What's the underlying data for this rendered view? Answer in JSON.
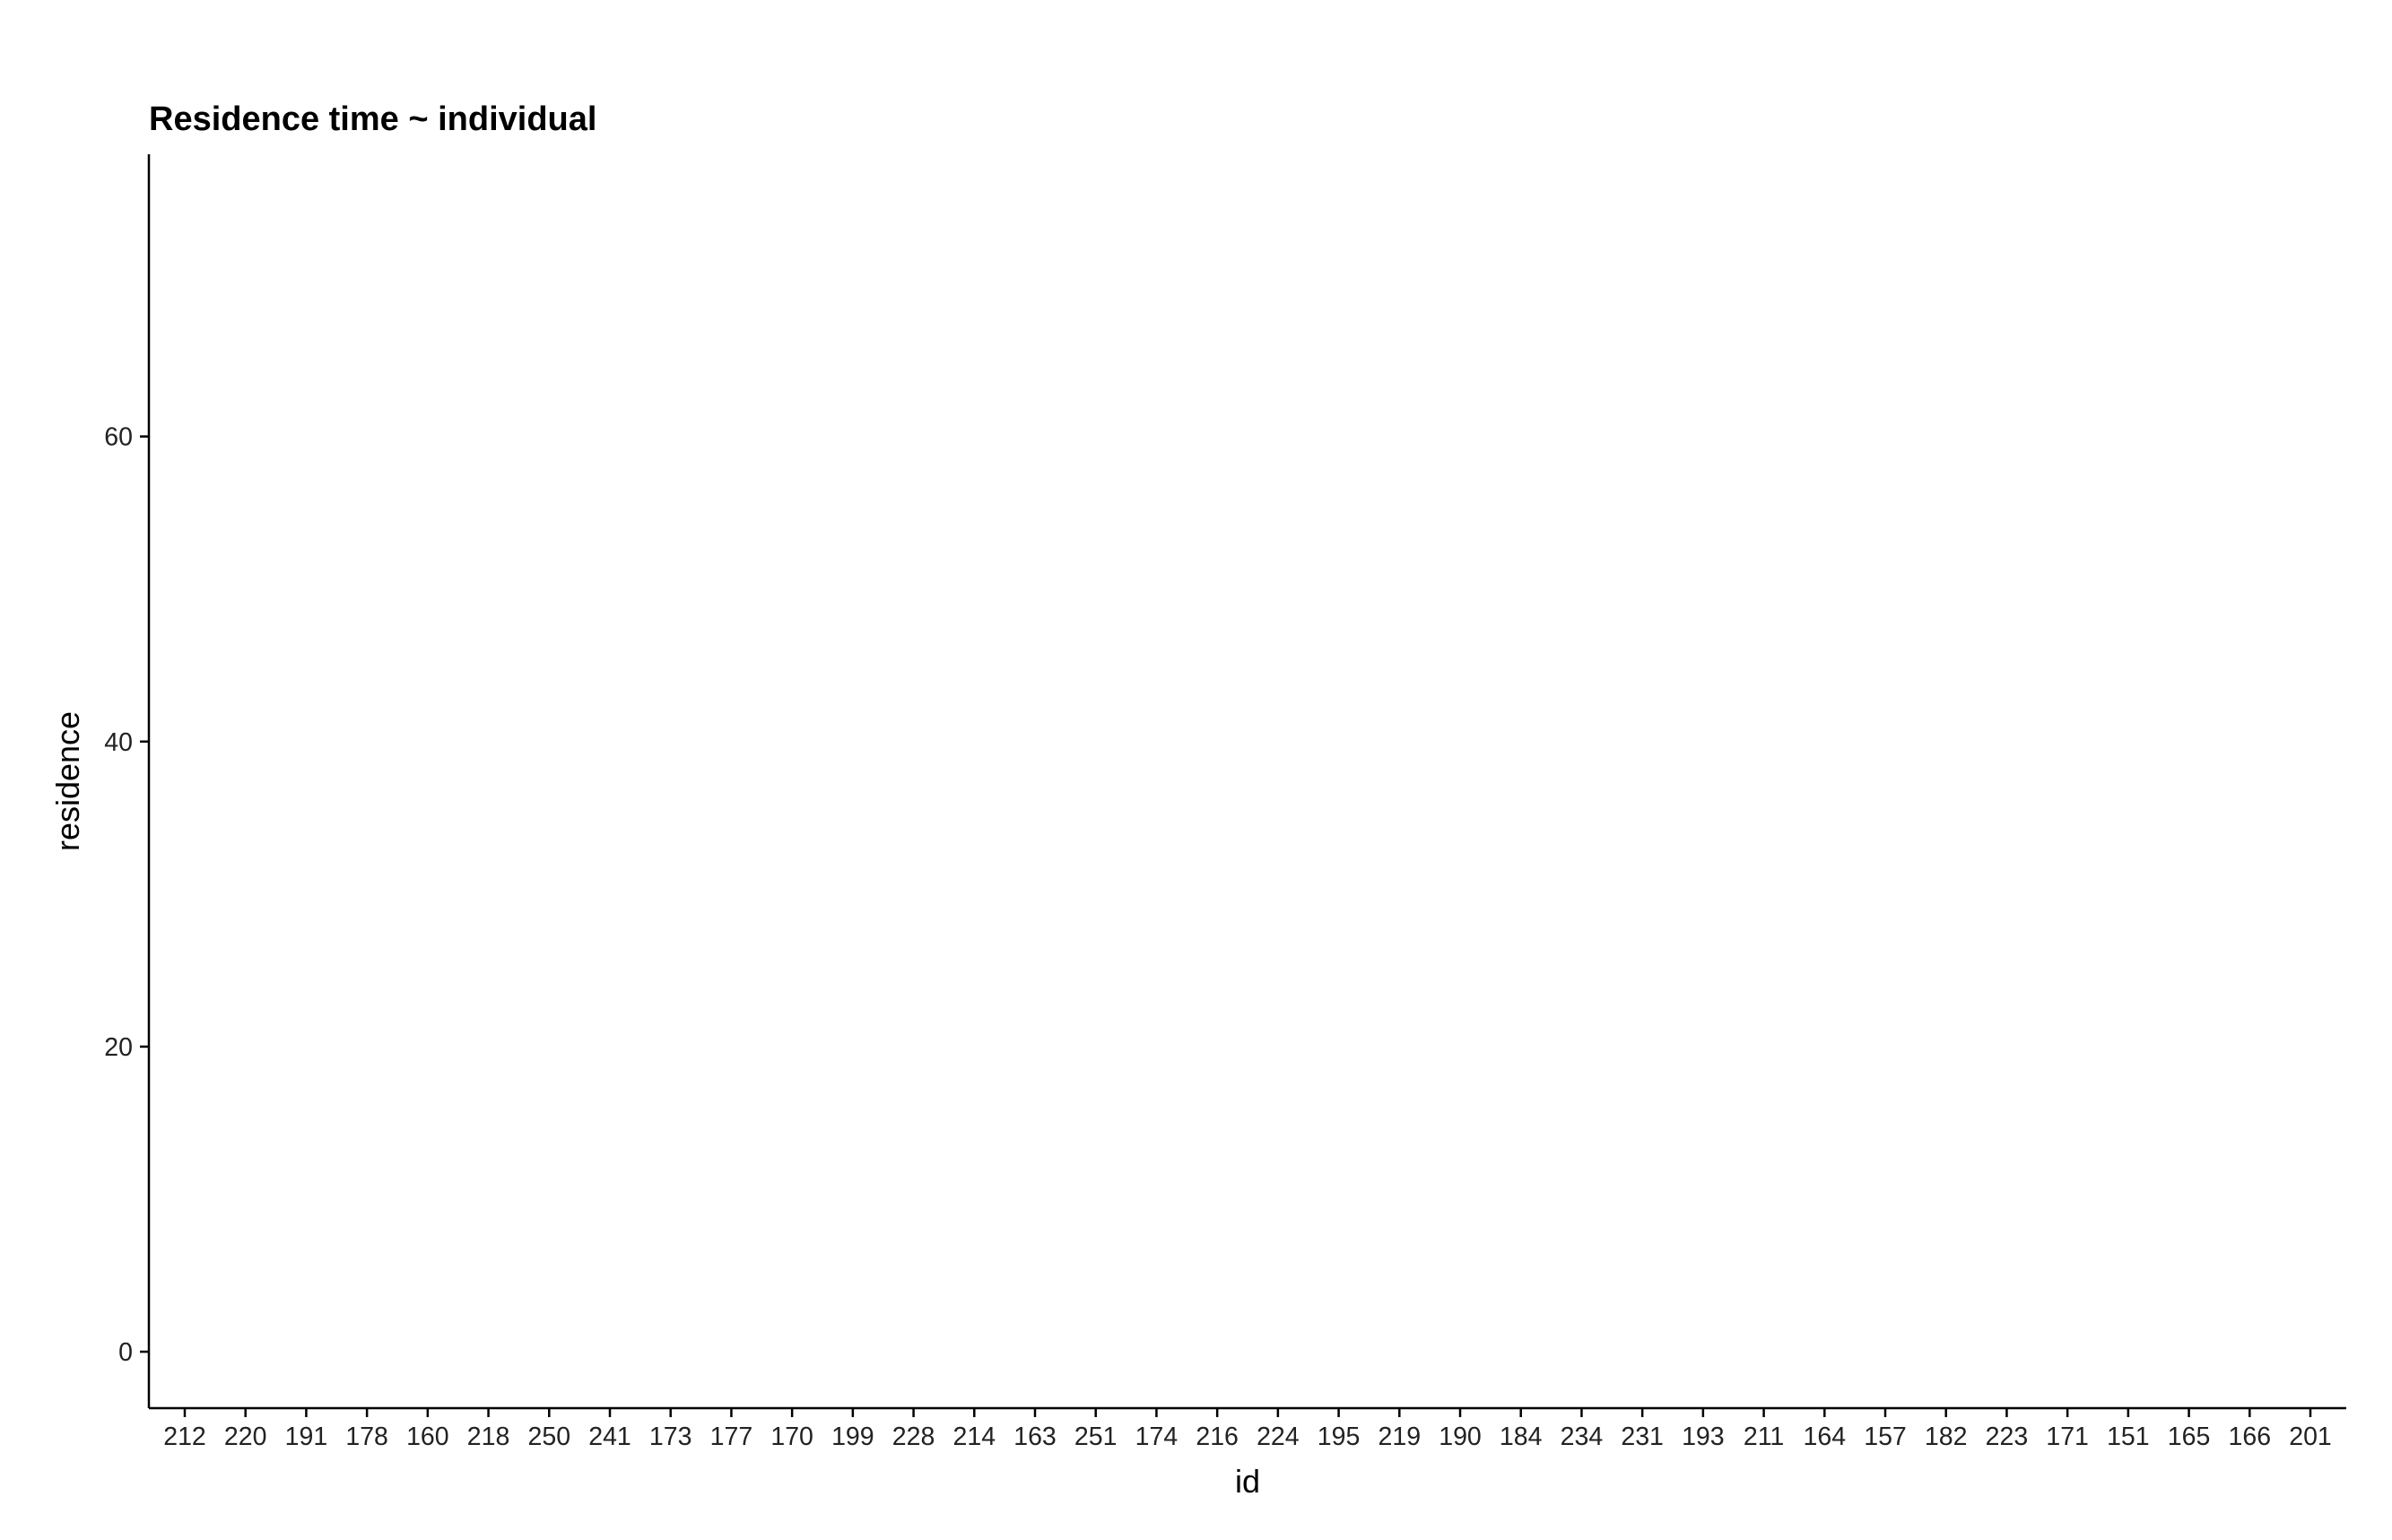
{
  "chart_data": {
    "type": "scatter",
    "title": "Residence time ~ individual",
    "xlabel": "id",
    "ylabel": "residence",
    "categories": [
      "212",
      "220",
      "191",
      "178",
      "160",
      "218",
      "250",
      "241",
      "173",
      "177",
      "170",
      "199",
      "228",
      "214",
      "163",
      "251",
      "174",
      "216",
      "224",
      "195",
      "219",
      "190",
      "184",
      "234",
      "231",
      "193",
      "211",
      "164",
      "157",
      "182",
      "223",
      "171",
      "151",
      "165",
      "166",
      "201"
    ],
    "yticks": [
      0,
      20,
      40,
      60
    ],
    "ylim": [
      -3.7,
      78.5
    ],
    "grid": false,
    "legend": "none"
  }
}
